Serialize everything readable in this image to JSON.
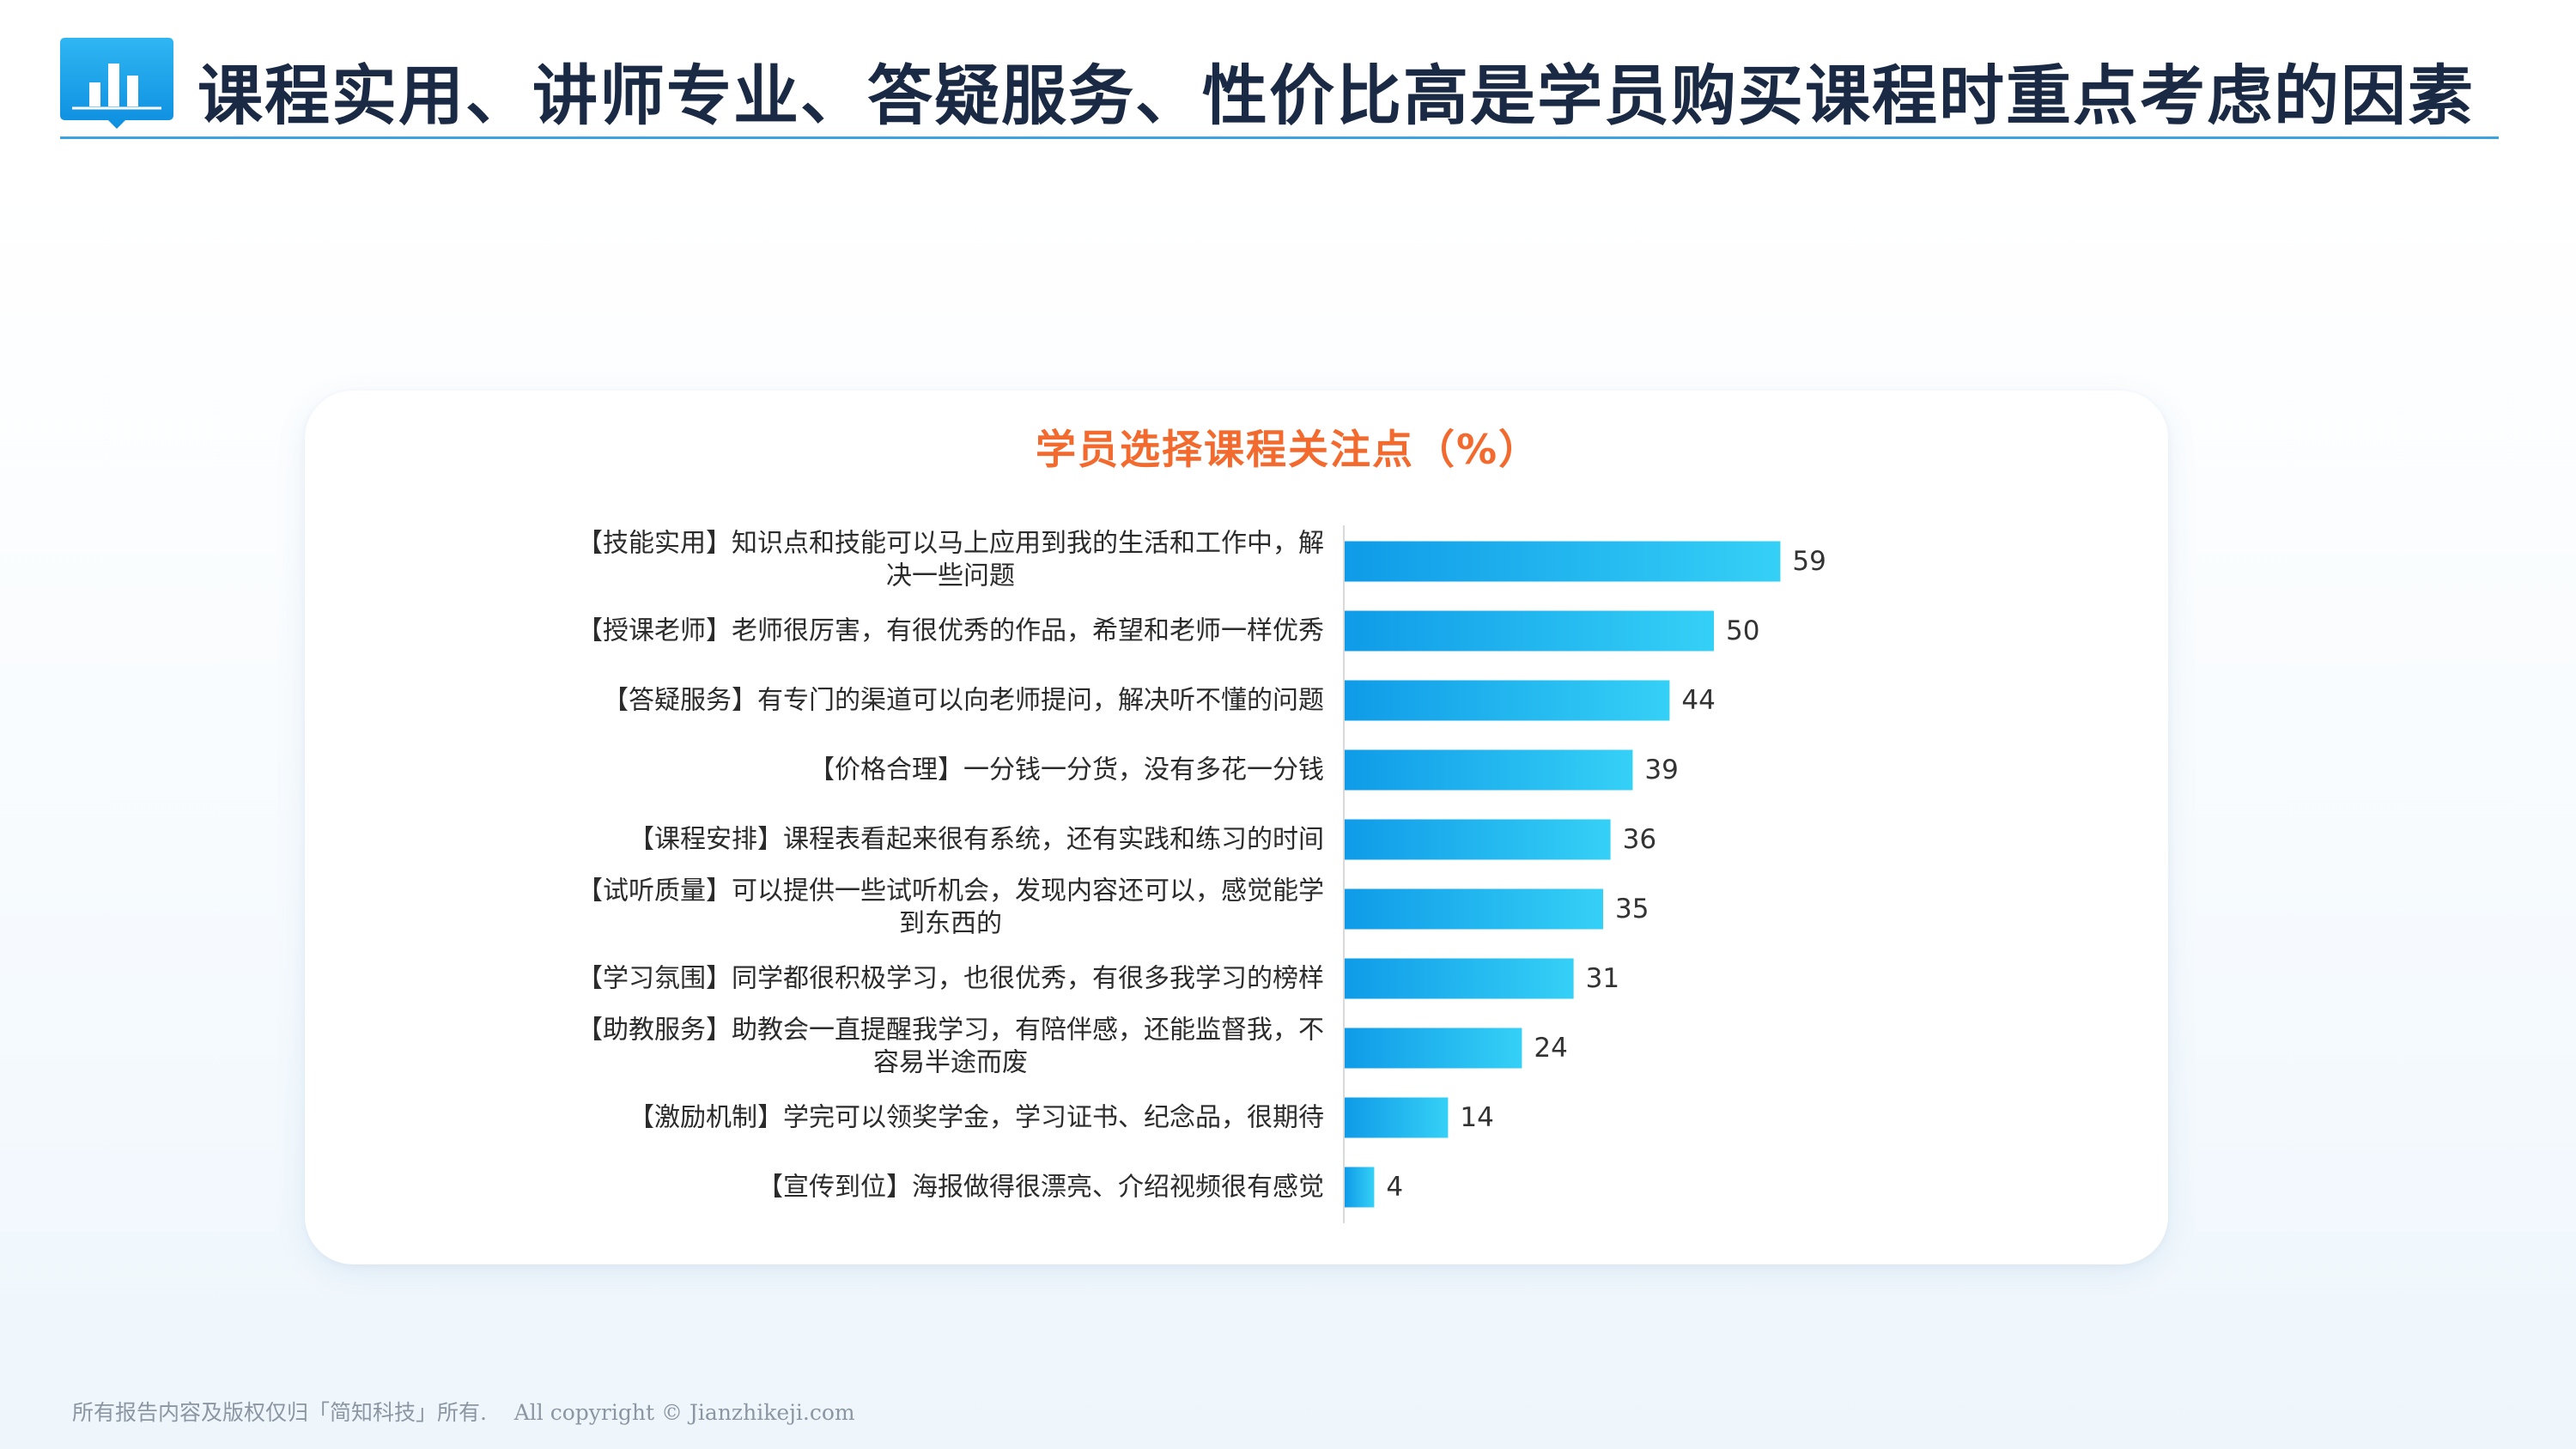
{
  "header": {
    "title": "课程实用、讲师专业、答疑服务、性价比高是学员购买课程时重点考虑的因素",
    "logo_icon": "bar-chart-book-icon"
  },
  "colors": {
    "accent": "#3aa3e0",
    "title_text": "#1a2a44",
    "chart_title": "#f26a2e",
    "bar_start": "#0f9be8",
    "bar_end": "#35d0f6"
  },
  "chart_data": {
    "type": "bar",
    "orientation": "horizontal",
    "title": "学员选择课程关注点（%）",
    "categories": [
      "【技能实用】知识点和技能可以马上应用到我的生活和工作中，解决一些问题",
      "【授课老师】老师很厉害，有很优秀的作品，希望和老师一样优秀",
      "【答疑服务】有专门的渠道可以向老师提问，解决听不懂的问题",
      "【价格合理】一分钱一分货，没有多花一分钱",
      "【课程安排】课程表看起来很有系统，还有实践和练习的时间",
      "【试听质量】可以提供一些试听机会，发现内容还可以，感觉能学到东西的",
      "【学习氛围】同学都很积极学习，也很优秀，有很多我学习的榜样",
      "【助教服务】助教会一直提醒我学习，有陪伴感，还能监督我，不容易半途而废",
      "【激励机制】学完可以领奖学金，学习证书、纪念品，很期待",
      "【宣传到位】海报做得很漂亮、介绍视频很有感觉"
    ],
    "values": [
      59,
      50,
      44,
      39,
      36,
      35,
      31,
      24,
      14,
      4
    ],
    "xlim": [
      0,
      100
    ],
    "grid": false,
    "legend": "none"
  },
  "footer": {
    "copyright": "所有报告内容及版权仅归「简知科技」所有.    All copyright © Jianzhikeji.com"
  }
}
